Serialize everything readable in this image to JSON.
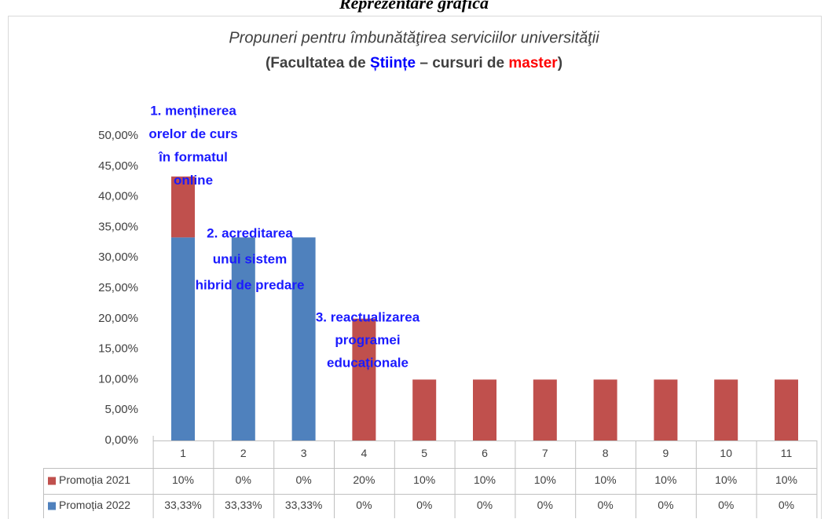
{
  "page_heading": "Reprezentare grafică",
  "chart_data": {
    "type": "stacked_bar",
    "title": "Propuneri pentru îmbunătăţirea  serviciilor universităţii",
    "subtitle": [
      {
        "text": "(Facultatea de ",
        "color": "#404040"
      },
      {
        "text": "Științe",
        "color": "#0000ff"
      },
      {
        "text": " – cursuri de ",
        "color": "#404040"
      },
      {
        "text": "master",
        "color": "#ff0000"
      },
      {
        "text": ")",
        "color": "#404040"
      }
    ],
    "categories": [
      "1",
      "2",
      "3",
      "4",
      "5",
      "6",
      "7",
      "8",
      "9",
      "10",
      "11"
    ],
    "series": [
      {
        "name": "Promoția 2022",
        "color": "#4f81bd",
        "values": [
          33.33,
          33.33,
          33.33,
          0,
          0,
          0,
          0,
          0,
          0,
          0,
          0
        ],
        "value_labels": [
          "33,33%",
          "33,33%",
          "33,33%",
          "0%",
          "0%",
          "0%",
          "0%",
          "0%",
          "0%",
          "0%",
          "0%"
        ]
      },
      {
        "name": "Promoția 2021",
        "color": "#c0504d",
        "values": [
          10,
          0,
          0,
          20,
          10,
          10,
          10,
          10,
          10,
          10,
          10
        ],
        "value_labels": [
          "10%",
          "0%",
          "0%",
          "20%",
          "10%",
          "10%",
          "10%",
          "10%",
          "10%",
          "10%",
          "10%"
        ]
      }
    ],
    "ylim": [
      0,
      50
    ],
    "yticks": [
      {
        "value": 0,
        "label": "0,00%"
      },
      {
        "value": 5,
        "label": "5,00%"
      },
      {
        "value": 10,
        "label": "10,00%"
      },
      {
        "value": 15,
        "label": "15,00%"
      },
      {
        "value": 20,
        "label": "20,00%"
      },
      {
        "value": 25,
        "label": "25,00%"
      },
      {
        "value": 30,
        "label": "30,00%"
      },
      {
        "value": 35,
        "label": "35,00%"
      },
      {
        "value": 40,
        "label": "40,00%"
      },
      {
        "value": 45,
        "label": "45,00%"
      },
      {
        "value": 50,
        "label": "50,00%"
      }
    ],
    "grid": false,
    "annotations": [
      {
        "lines": [
          "1. menținerea",
          "orelor de curs",
          "în formatul",
          "online"
        ]
      },
      {
        "lines": [
          "2. acreditarea",
          "unui sistem",
          "hibrid de predare"
        ]
      },
      {
        "lines": [
          "3. reactualizarea",
          "programei",
          "educaționale"
        ]
      }
    ]
  }
}
